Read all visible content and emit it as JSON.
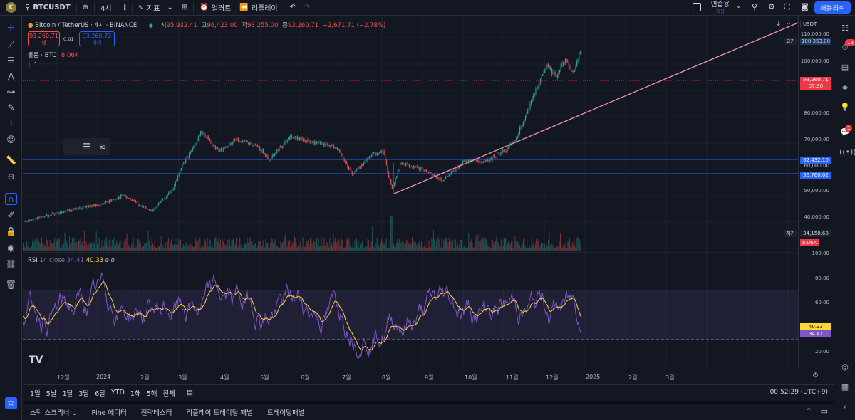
{
  "topbar": {
    "avatar": "K",
    "symbol": "BTCUSDT",
    "interval": "4시",
    "indicators": "지표",
    "alert": "얼러트",
    "replay": "리플레이",
    "layout_name": "연습용",
    "layout_sub": "저장",
    "publish": "퍼블리쉬"
  },
  "legend": {
    "title": "Bitcoin / TetherUS · 4시 · BINANCE",
    "o_label": "시",
    "o_val": "95,932.41",
    "h_label": "고",
    "h_val": "96,423.00",
    "l_label": "저",
    "l_val": "93,255.00",
    "c_label": "종",
    "c_val": "93,260.71",
    "change": "−2,671.71 (−2.78%)",
    "sell_price": "93,260.71",
    "sell_label": "셀",
    "spread": "0.01",
    "buy_price": "93,260.72",
    "buy_label": "바이",
    "volume_label": "볼륨 · BTC",
    "volume_val": "8.06K",
    "rsi_label": "RSI",
    "rsi_params": "14 close",
    "rsi_val": "34.41",
    "rsi_ma": "40.33",
    "rsi_extra": "ø ø"
  },
  "price_axis": {
    "currency": "USDT",
    "ticks": [
      "110,000.00",
      "100,000.00",
      "80,000.00",
      "70,000.00",
      "60,000.00",
      "50,000.00",
      "40,000.00"
    ],
    "high_label": "고가",
    "high_val": "108,353.00",
    "last_price": "93,260.71",
    "countdown": "07:30",
    "line1": "62,432.10",
    "line2": "56,760.02",
    "low_label": "저가",
    "low_val": "34,150.68",
    "vol_val": "8.06K",
    "rsi_ticks": [
      "100.00",
      "80.00",
      "60.00",
      "20.00"
    ],
    "rsi_ma_box": "40.33",
    "rsi_box": "34.41"
  },
  "time_axis": [
    "12월",
    "2024",
    "2월",
    "3월",
    "4월",
    "5월",
    "6월",
    "7월",
    "8월",
    "9월",
    "10월",
    "11월",
    "12월",
    "2025",
    "2월",
    "3월"
  ],
  "range_bar": {
    "ranges": [
      "1일",
      "5날",
      "1달",
      "3달",
      "6달",
      "YTD",
      "1해",
      "5해",
      "전체"
    ],
    "clock": "00:52:29 (UTC+9)"
  },
  "bottom_panel": {
    "tabs": [
      "스탁 스크리너",
      "Pine 에디터",
      "전략테스터",
      "리플레이 트레이딩 패널",
      "트레이딩패널"
    ]
  },
  "badges": {
    "alerts": "12",
    "notifications": "1"
  },
  "colors": {
    "up": "#26a69a",
    "down": "#ef5350",
    "accent": "#2962ff",
    "rsi": "#7e57c2",
    "rsi_ma": "#fdd835",
    "trend": "#f48fb1"
  },
  "chart_data": {
    "type": "candlestick",
    "symbol": "BTCUSDT",
    "y_range": [
      30000,
      110000
    ],
    "key_prices": {
      "last": 93260.71,
      "high": 108353.0,
      "low": 34150.68,
      "hline1": 62432.1,
      "hline2": 56760.02
    },
    "rsi": {
      "value": 34.41,
      "ma": 40.33,
      "range": [
        0,
        100
      ],
      "bands": [
        30,
        70
      ]
    }
  }
}
